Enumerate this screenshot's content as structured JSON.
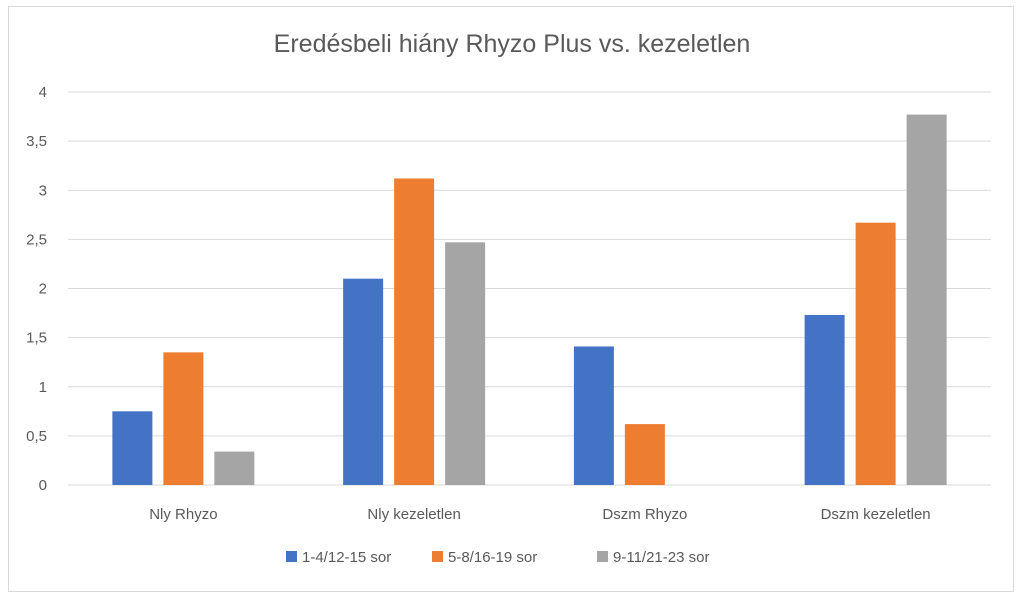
{
  "chart_data": {
    "type": "bar",
    "title": "Eredésbeli hiány Rhyzo Plus vs. kezeletlen",
    "categories": [
      "Nly Rhyzo",
      "Nly kezeletlen",
      "Dszm Rhyzo",
      "Dszm kezeletlen"
    ],
    "series": [
      {
        "name": "1-4/12-15 sor",
        "color": "#4472c4",
        "values": [
          0.75,
          2.1,
          1.41,
          1.73
        ]
      },
      {
        "name": "5-8/16-19 sor",
        "color": "#ed7d31",
        "values": [
          1.35,
          3.12,
          0.62,
          2.67
        ]
      },
      {
        "name": "9-11/21-23 sor",
        "color": "#a5a5a5",
        "values": [
          0.34,
          2.47,
          0,
          3.77
        ]
      }
    ],
    "yticks": [
      "0",
      "0,5",
      "1",
      "1,5",
      "2",
      "2,5",
      "3",
      "3,5",
      "4"
    ],
    "ylim": [
      0,
      4
    ],
    "grid": true,
    "legend_position": "bottom"
  }
}
